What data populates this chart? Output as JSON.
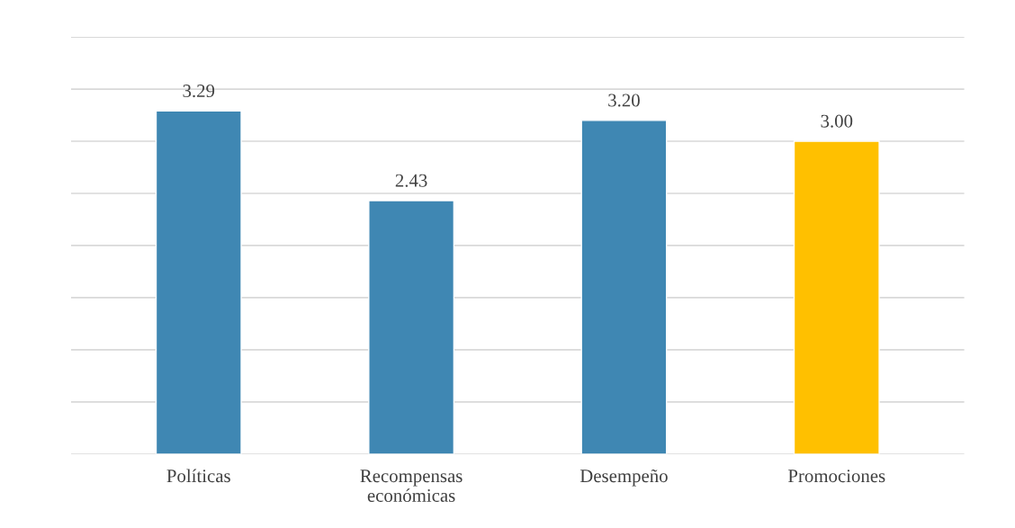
{
  "chart_data": {
    "type": "bar",
    "categories": [
      "Políticas",
      "Recompensas\neconómicas",
      "Desempeño",
      "Promociones"
    ],
    "values": [
      3.29,
      2.43,
      3.2,
      3.0
    ],
    "colors": [
      "#3f87b3",
      "#3f87b3",
      "#3f87b3",
      "#ffc000"
    ],
    "value_labels": [
      "3.29",
      "2.43",
      "3.20",
      "3.00"
    ],
    "ylim": [
      0,
      4
    ],
    "yticks": [
      {
        "value": 0,
        "label": null
      },
      {
        "value": 0.5,
        "label": null
      },
      {
        "value": 1,
        "label": null
      },
      {
        "value": 1.5,
        "label": null
      },
      {
        "value": 2,
        "label": null
      },
      {
        "value": 2.5,
        "label": null
      },
      {
        "value": 3,
        "label": null
      },
      {
        "value": 3.5,
        "label": null
      },
      {
        "value": 4,
        "label": null
      }
    ],
    "tick_labels": "x",
    "grid": "y"
  }
}
